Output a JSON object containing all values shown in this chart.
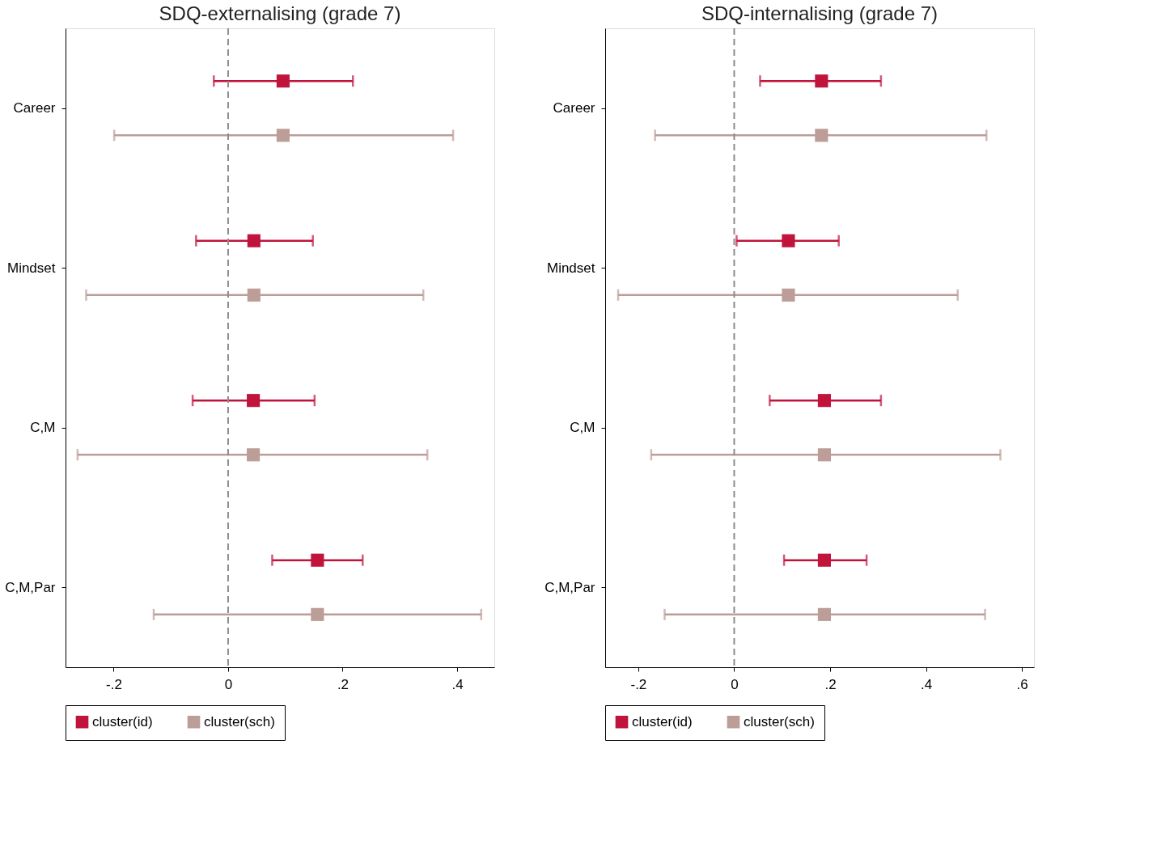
{
  "chart_data": [
    {
      "type": "scatter",
      "orientation": "horizontal",
      "title": "SDQ-externalising (grade 7)",
      "categories": [
        "Career",
        "Mindset",
        "C,M",
        "C,M,Par"
      ],
      "xlim": [
        -0.284,
        0.465
      ],
      "xticks": [
        {
          "value": -0.2,
          "label": "-.2"
        },
        0,
        {
          "value": 0.2,
          "label": ".2"
        },
        {
          "value": 0.4,
          "label": ".4"
        }
      ],
      "marker": "square",
      "legend": "bottom",
      "grid": false,
      "ref_lines": [
        {
          "axis": "x",
          "value": 0,
          "color": "#8c8c8c",
          "line_style": "dashed"
        }
      ],
      "series": [
        {
          "name": "cluster(id)",
          "color": "#c0143c",
          "values": [
            0.096,
            0.045,
            0.044,
            0.156
          ],
          "errors": [
            [
              -0.025,
              0.218
            ],
            [
              -0.056,
              0.148
            ],
            [
              -0.062,
              0.151
            ],
            [
              0.077,
              0.235
            ]
          ]
        },
        {
          "name": "cluster(sch)",
          "color": "#bc9d98",
          "values": [
            0.096,
            0.045,
            0.044,
            0.156
          ],
          "errors": [
            [
              -0.199,
              0.393
            ],
            [
              -0.248,
              0.341
            ],
            [
              -0.263,
              0.348
            ],
            [
              -0.13,
              0.442
            ]
          ]
        }
      ]
    },
    {
      "type": "scatter",
      "orientation": "horizontal",
      "title": "SDQ-internalising (grade 7)",
      "categories": [
        "Career",
        "Mindset",
        "C,M",
        "C,M,Par"
      ],
      "xlim": [
        -0.269,
        0.625
      ],
      "xticks": [
        {
          "value": -0.2,
          "label": "-.2"
        },
        0,
        {
          "value": 0.2,
          "label": ".2"
        },
        {
          "value": 0.4,
          "label": ".4"
        },
        {
          "value": 0.6,
          "label": ".6"
        }
      ],
      "marker": "square",
      "legend": "bottom",
      "grid": false,
      "ref_lines": [
        {
          "axis": "x",
          "value": 0,
          "color": "#8c8c8c",
          "line_style": "dashed"
        }
      ],
      "series": [
        {
          "name": "cluster(id)",
          "color": "#c0143c",
          "values": [
            0.182,
            0.113,
            0.188,
            0.188
          ],
          "errors": [
            [
              0.054,
              0.306
            ],
            [
              0.005,
              0.218
            ],
            [
              0.074,
              0.306
            ],
            [
              0.104,
              0.276
            ]
          ]
        },
        {
          "name": "cluster(sch)",
          "color": "#bc9d98",
          "values": [
            0.182,
            0.113,
            0.188,
            0.188
          ],
          "errors": [
            [
              -0.165,
              0.526
            ],
            [
              -0.242,
              0.466
            ],
            [
              -0.173,
              0.555
            ],
            [
              -0.145,
              0.523
            ]
          ]
        }
      ]
    }
  ]
}
